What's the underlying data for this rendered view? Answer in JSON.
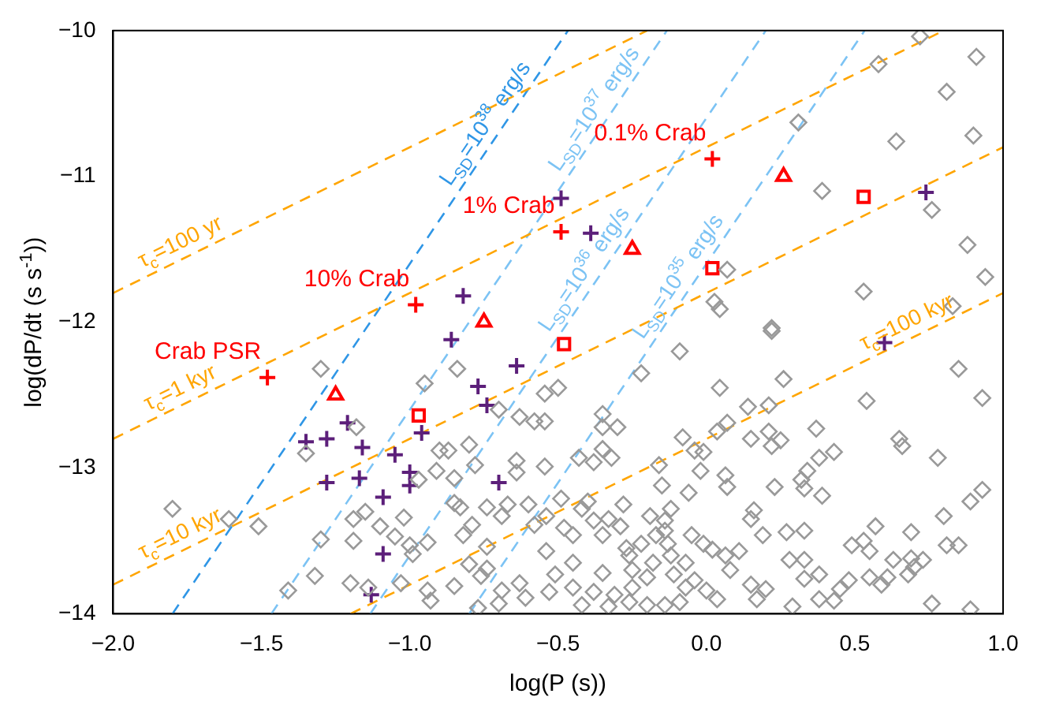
{
  "chart_data": {
    "type": "scatter",
    "xlabel": "log(P (s))",
    "ylabel": "log(dP/dt (s s$^{-1}$))",
    "xlim": [
      -2,
      1
    ],
    "ylim": [
      -14,
      -10
    ],
    "xticks": [
      {
        "value": -2,
        "label": "−2.0"
      },
      {
        "value": -1.5,
        "label": "−1.5"
      },
      {
        "value": -1,
        "label": "−1.0"
      },
      {
        "value": -0.5,
        "label": "−0.5"
      },
      {
        "value": 0,
        "label": "0.0"
      },
      {
        "value": 0.5,
        "label": "0.5"
      },
      {
        "value": 1,
        "label": "1.0"
      }
    ],
    "yticks": [
      {
        "value": -14,
        "label": "−14"
      },
      {
        "value": -13,
        "label": "−13"
      },
      {
        "value": -12,
        "label": "−12"
      },
      {
        "value": -11,
        "label": "−11"
      },
      {
        "value": -10,
        "label": "−10"
      }
    ],
    "series": [
      {
        "type": "scatter",
        "marker": "diamond",
        "color": "#999999",
        "x": [
          0.72,
          0.91,
          0.58,
          0.81,
          0.31,
          0.9,
          0.64,
          0.39,
          0.76,
          0.88,
          0.94,
          0.53,
          0.83,
          0.07,
          0.027,
          0.045,
          0.22,
          -1.3,
          -0.95,
          -0.84,
          -0.63,
          -0.58,
          -1.35,
          -1.18,
          -0.9,
          -0.87,
          -0.8,
          -0.7,
          -0.97,
          -0.91,
          -0.85,
          -0.78,
          -0.64,
          -0.64,
          -1.8,
          -1.61,
          -1.51,
          -1.3,
          -1.19,
          -1.15,
          -1.02,
          -1.1,
          -1.19,
          -1.05,
          -1,
          -0.94,
          -0.99,
          -0.85,
          -0.83,
          -0.74,
          -0.67,
          -0.69,
          -0.79,
          -0.82,
          -0.74,
          -0.6,
          -0.58,
          -1.32,
          -1.41,
          -1.2,
          -1.14,
          -1.03,
          -0.94,
          -0.85,
          -0.8,
          -0.76,
          -0.74,
          -0.69,
          -0.63,
          -0.77,
          -0.7,
          -0.61,
          -0.93,
          0.22,
          -0.09,
          -0.22,
          0.26,
          0.85,
          0.54,
          0.93,
          0.045,
          0.14,
          0.21,
          0.07,
          0.036,
          0.15,
          0.21,
          0.25,
          0.37,
          0.22,
          0.43,
          0.38,
          0.65,
          0.66,
          0.78,
          -0.08,
          -0.04,
          -0.01,
          -0.02,
          -0.16,
          -0.35,
          -0.35,
          -0.3,
          -0.35,
          -0.32,
          -0.38,
          -0.43,
          -0.545,
          -0.5,
          -0.545,
          -0.545,
          0.064,
          0.07,
          -0.15,
          -0.06,
          0.23,
          0.32,
          0.33,
          0.34,
          0.39,
          0.93,
          0.89,
          0.8,
          0.57,
          0.69,
          0.53,
          0.49,
          0.55,
          0.81,
          0.85,
          0.63,
          0.69,
          0.73,
          0.7,
          0.68,
          0.55,
          0.61,
          0.59,
          0.48,
          0.45,
          0.38,
          0.33,
          0.28,
          0.33,
          0.19,
          0.27,
          0.33,
          0.16,
          0.15,
          0.11,
          0.064,
          0.08,
          0.15,
          0.2,
          0.17,
          0.29,
          0.38,
          0.43,
          0.76,
          0.89,
          -0.14,
          0,
          -0.01,
          -0.12,
          -0.07,
          0.02,
          -0.14,
          -0.12,
          -0.19,
          -0.29,
          -0.33,
          -0.28,
          -0.4,
          -0.42,
          -0.49,
          -0.48,
          -0.54,
          -0.45,
          -0.38,
          -0.35,
          -0.27,
          -0.22,
          -0.17,
          -0.14,
          -0.13,
          -0.05,
          -0.54,
          -0.45,
          -0.35,
          -0.26,
          -0.25,
          -0.18,
          -0.2,
          -0.11,
          -0.04,
          -0.07,
          -0.25,
          -0.31,
          -0.38,
          -0.45,
          -0.51,
          -0.53,
          -0.42,
          -0.33,
          -0.26,
          -0.2,
          -0.09,
          0.036
        ],
        "values": [
          -10.04,
          -10.18,
          -10.23,
          -10.42,
          -10.63,
          -10.72,
          -10.76,
          -11.1,
          -11.23,
          -11.47,
          -11.69,
          -11.79,
          -11.89,
          -11.64,
          -11.86,
          -11.91,
          -12.04,
          -12.32,
          -12.42,
          -12.32,
          -12.65,
          -12.68,
          -12.9,
          -12.72,
          -12.88,
          -12.88,
          -12.84,
          -12.6,
          -13.08,
          -13.02,
          -13.07,
          -12.98,
          -12.95,
          -13.03,
          -13.28,
          -13.35,
          -13.4,
          -13.49,
          -13.35,
          -13.3,
          -13.34,
          -13.4,
          -13.5,
          -13.47,
          -13.53,
          -13.51,
          -13.59,
          -13.24,
          -13.27,
          -13.27,
          -13.25,
          -13.33,
          -13.39,
          -13.46,
          -13.54,
          -13.25,
          -13.39,
          -13.74,
          -13.84,
          -13.79,
          -13.82,
          -13.79,
          -13.84,
          -13.81,
          -13.66,
          -13.74,
          -13.69,
          -13.84,
          -13.79,
          -13.96,
          -13.93,
          -13.89,
          -13.91,
          -12.06,
          -12.2,
          -12.35,
          -12.39,
          -12.32,
          -12.54,
          -12.52,
          -12.45,
          -12.58,
          -12.57,
          -12.69,
          -12.75,
          -12.8,
          -12.75,
          -12.81,
          -12.73,
          -12.85,
          -12.89,
          -12.93,
          -12.8,
          -12.85,
          -12.93,
          -12.79,
          -12.88,
          -12.89,
          -13.02,
          -12.98,
          -12.63,
          -12.72,
          -12.72,
          -12.87,
          -12.93,
          -12.96,
          -12.93,
          -12.49,
          -12.45,
          -12.68,
          -12.99,
          -13.05,
          -13.13,
          -13.12,
          -13.17,
          -13.13,
          -13.08,
          -13.14,
          -13.02,
          -13.19,
          -13.15,
          -13.23,
          -13.33,
          -13.4,
          -13.44,
          -13.5,
          -13.53,
          -13.57,
          -13.53,
          -13.53,
          -13.63,
          -13.62,
          -13.63,
          -13.68,
          -13.73,
          -13.75,
          -13.75,
          -13.8,
          -13.77,
          -13.83,
          -13.73,
          -13.76,
          -13.63,
          -13.63,
          -13.46,
          -13.44,
          -13.43,
          -13.29,
          -13.35,
          -13.57,
          -13.6,
          -13.7,
          -13.8,
          -13.83,
          -13.9,
          -13.95,
          -13.9,
          -13.91,
          -13.93,
          -13.97,
          -13.94,
          -13.84,
          -13.52,
          -13.6,
          -13.65,
          -13.56,
          -13.36,
          -13.28,
          -13.33,
          -13.4,
          -13.35,
          -13.25,
          -13.23,
          -13.28,
          -13.21,
          -13.41,
          -13.33,
          -13.46,
          -13.36,
          -13.46,
          -13.55,
          -13.52,
          -13.46,
          -13.43,
          -13.52,
          -13.46,
          -13.57,
          -13.65,
          -13.72,
          -13.6,
          -13.7,
          -13.65,
          -13.75,
          -13.73,
          -13.77,
          -13.82,
          -13.82,
          -13.87,
          -13.85,
          -13.82,
          -13.73,
          -13.85,
          -13.94,
          -13.95,
          -13.92,
          -13.94,
          -13.92,
          -13.9
        ]
      },
      {
        "type": "scatter",
        "marker": "cross",
        "color": "#5c1f7a",
        "x": [
          -0.82,
          -0.49,
          -0.39,
          0.74,
          -0.86,
          -0.64,
          -0.77,
          -0.74,
          -1.21,
          -1.16,
          -1.28,
          -1.35,
          -0.96,
          -1.05,
          -1,
          -1,
          -1.17,
          -1.28,
          -1.09,
          -0.7,
          -1.09,
          -1.13,
          0.6
        ],
        "values": [
          -11.82,
          -11.15,
          -11.39,
          -11.11,
          -12.12,
          -12.3,
          -12.44,
          -12.57,
          -12.69,
          -12.86,
          -12.8,
          -12.82,
          -12.76,
          -12.91,
          -13.03,
          -13.12,
          -13.07,
          -13.1,
          -13.2,
          -13.1,
          -13.59,
          -13.87,
          -12.14
        ]
      },
      {
        "type": "scatter",
        "marker": "cross",
        "color": "#ff0000",
        "x": [
          -1.48,
          -0.98,
          -0.49,
          0.02
        ],
        "values": [
          -12.38,
          -11.88,
          -11.38,
          -10.88
        ]
      },
      {
        "type": "scatter",
        "marker": "triangle",
        "color": "#ff0000",
        "x": [
          -1.25,
          -0.75,
          -0.25,
          0.26
        ],
        "values": [
          -12.5,
          -12,
          -11.5,
          -11
        ]
      },
      {
        "type": "scatter",
        "marker": "square",
        "color": "#ff0000",
        "x": [
          -0.97,
          -0.48,
          0.02,
          0.53
        ],
        "values": [
          -12.64,
          -12.15,
          -11.63,
          -11.14
        ]
      },
      {
        "type": "line",
        "marker": "none",
        "line_style": "dashed",
        "color": "#ffa500",
        "x": [
          -2,
          -0.2
        ],
        "values": [
          -11.8,
          -10
        ]
      },
      {
        "type": "line",
        "marker": "none",
        "line_style": "dashed",
        "color": "#ffa500",
        "x": [
          -2,
          0.8
        ],
        "values": [
          -12.8,
          -10
        ]
      },
      {
        "type": "line",
        "marker": "none",
        "line_style": "dashed",
        "color": "#ffa500",
        "x": [
          -2,
          1
        ],
        "values": [
          -13.8,
          -10.8
        ]
      },
      {
        "type": "line",
        "marker": "none",
        "line_style": "dashed",
        "color": "#ffa500",
        "x": [
          -1.2,
          1
        ],
        "values": [
          -14,
          -11.8
        ]
      },
      {
        "type": "line",
        "marker": "none",
        "line_style": "dashed",
        "color": "#2f96e6",
        "x": [
          -1.8,
          -0.4667
        ],
        "values": [
          -14,
          -10
        ]
      },
      {
        "type": "line",
        "marker": "none",
        "line_style": "dashed",
        "color": "#7cc3f4",
        "x": [
          -1.4667,
          -0.1333
        ],
        "values": [
          -14,
          -10
        ]
      },
      {
        "type": "line",
        "marker": "none",
        "line_style": "dashed",
        "color": "#7cc3f4",
        "x": [
          -1.1333,
          0.2
        ],
        "values": [
          -14,
          -10
        ]
      },
      {
        "type": "line",
        "marker": "none",
        "line_style": "dashed",
        "color": "#7cc3f4",
        "x": [
          -0.8,
          0.5333
        ],
        "values": [
          -14,
          -10
        ]
      }
    ],
    "annotations": [
      {
        "text": "Crab PSR",
        "x": -1.48,
        "y": -12.38
      },
      {
        "text": "10% Crab",
        "x": -0.98,
        "y": -11.88
      },
      {
        "text": "1% Crab",
        "x": -0.49,
        "y": -11.38
      },
      {
        "text": "0.1% Crab",
        "x": 0.02,
        "y": -10.88
      },
      {
        "text": "τ$_{c}$=100 yr",
        "x": -1.75,
        "y": -11.55
      },
      {
        "text": "τ$_{c}$=1 kyr",
        "x": -1.75,
        "y": -12.55
      },
      {
        "text": "τ$_{c}$=10 kyr",
        "x": -1.75,
        "y": -13.55
      },
      {
        "text": "τ$_{c}$=100 kyr",
        "x": 0.7,
        "y": -12.1
      },
      {
        "text": "L$_{SD}$=10$^{38}$ erg/s",
        "x": -0.7,
        "y": -10.7
      },
      {
        "text": "L$_{SD}$=10$^{37}$ erg/s",
        "x": -0.3333,
        "y": -10.6
      },
      {
        "text": "L$_{SD}$=10$^{36}$ erg/s",
        "x": -0.3667,
        "y": -11.7
      },
      {
        "text": "L$_{SD}$=10$^{35}$ erg/s",
        "x": -0.05,
        "y": -11.75
      }
    ]
  }
}
